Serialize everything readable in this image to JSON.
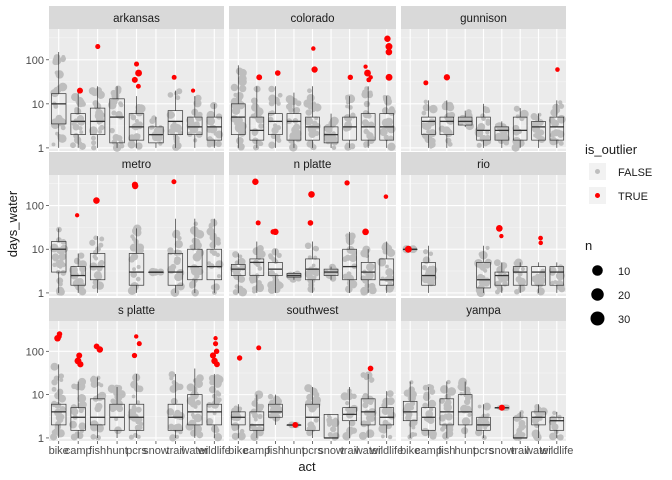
{
  "chart_data": {
    "type": "boxplot",
    "facet_var": "river",
    "x_var": "act",
    "xlabel": "act",
    "ylabel": "days_water",
    "y_scale": "log10",
    "ylim": [
      0.85,
      500
    ],
    "y_ticks": [
      1,
      10,
      100
    ],
    "y_tick_labels": [
      "1",
      "10",
      "100"
    ],
    "categories": [
      "bike",
      "camp",
      "fish",
      "hunt",
      "pcrs",
      "snow",
      "trail",
      "water",
      "wildlife"
    ],
    "category_tick_labels": [
      "bike",
      "camp",
      "fish",
      "hunt",
      "pcrs",
      "snow",
      "trail",
      "water",
      "wildlife"
    ],
    "grid": true,
    "legends": {
      "color": {
        "title": "is_outlier",
        "entries": [
          {
            "label": "FALSE",
            "color": "#bebebe"
          },
          {
            "label": "TRUE",
            "color": "#ff0000"
          }
        ],
        "position": "right"
      },
      "size": {
        "title": "n",
        "entries": [
          {
            "label": "10",
            "value": 10
          },
          {
            "label": "20",
            "value": 20
          },
          {
            "label": "30",
            "value": 30
          }
        ],
        "position": "right"
      }
    },
    "panels": [
      {
        "name": "arkansas",
        "boxes": [
          {
            "cat": "bike",
            "min": 1,
            "q1": 3.5,
            "med": 10,
            "q3": 17,
            "max": 150
          },
          {
            "cat": "camp",
            "min": 1,
            "q1": 2,
            "med": 4,
            "q3": 6,
            "max": 20
          },
          {
            "cat": "fish",
            "min": 1,
            "q1": 2,
            "med": 4,
            "q3": 8,
            "max": 25
          },
          {
            "cat": "hunt",
            "min": 1,
            "q1": 1.3,
            "med": 5,
            "q3": 13,
            "max": 25
          },
          {
            "cat": "pcrs",
            "min": 1,
            "q1": 1.5,
            "med": 3,
            "q3": 6,
            "max": 15
          },
          {
            "cat": "snow",
            "min": 1,
            "q1": 1.3,
            "med": 2,
            "q3": 3,
            "max": 5
          },
          {
            "cat": "trail",
            "min": 1,
            "q1": 2,
            "med": 4,
            "q3": 7,
            "max": 20
          },
          {
            "cat": "water",
            "min": 1,
            "q1": 2,
            "med": 3,
            "q3": 5,
            "max": 15
          },
          {
            "cat": "wildlife",
            "min": 1,
            "q1": 1.5,
            "med": 3,
            "q3": 5,
            "max": 10
          }
        ],
        "outliers": [
          {
            "cat": "camp",
            "v": 20
          },
          {
            "cat": "fish",
            "v": 200
          },
          {
            "cat": "pcrs",
            "v": 80
          },
          {
            "cat": "pcrs",
            "v": 50
          },
          {
            "cat": "pcrs",
            "v": 35
          },
          {
            "cat": "pcrs",
            "v": 25
          },
          {
            "cat": "trail",
            "v": 40
          },
          {
            "cat": "water",
            "v": 20
          }
        ]
      },
      {
        "name": "colorado",
        "boxes": [
          {
            "cat": "bike",
            "min": 1,
            "q1": 2,
            "med": 5,
            "q3": 10,
            "max": 75
          },
          {
            "cat": "camp",
            "min": 1,
            "q1": 1.5,
            "med": 2.5,
            "q3": 5,
            "max": 25
          },
          {
            "cat": "fish",
            "min": 1,
            "q1": 2,
            "med": 4,
            "q3": 6,
            "max": 25
          },
          {
            "cat": "hunt",
            "min": 1,
            "q1": 1.5,
            "med": 4,
            "q3": 6,
            "max": 18
          },
          {
            "cat": "pcrs",
            "min": 1,
            "q1": 1.5,
            "med": 3,
            "q3": 5,
            "max": 25
          },
          {
            "cat": "snow",
            "min": 1,
            "q1": 1.3,
            "med": 2,
            "q3": 3,
            "max": 6
          },
          {
            "cat": "trail",
            "min": 1,
            "q1": 1.5,
            "med": 3,
            "q3": 5,
            "max": 15
          },
          {
            "cat": "water",
            "min": 1,
            "q1": 1.5,
            "med": 3,
            "q3": 6,
            "max": 25
          },
          {
            "cat": "wildlife",
            "min": 1,
            "q1": 1.5,
            "med": 3,
            "q3": 6,
            "max": 15
          }
        ],
        "outliers": [
          {
            "cat": "camp",
            "v": 40
          },
          {
            "cat": "fish",
            "v": 50
          },
          {
            "cat": "pcrs",
            "v": 180
          },
          {
            "cat": "pcrs",
            "v": 60
          },
          {
            "cat": "trail",
            "v": 40
          },
          {
            "cat": "water",
            "v": 70
          },
          {
            "cat": "water",
            "v": 50
          },
          {
            "cat": "water",
            "v": 40
          },
          {
            "cat": "water",
            "v": 35
          },
          {
            "cat": "wildlife",
            "v": 300
          },
          {
            "cat": "wildlife",
            "v": 200
          },
          {
            "cat": "wildlife",
            "v": 150
          },
          {
            "cat": "wildlife",
            "v": 40
          }
        ]
      },
      {
        "name": "gunnison",
        "boxes": [
          {
            "cat": "camp",
            "min": 1,
            "q1": 2,
            "med": 4,
            "q3": 5,
            "max": 12
          },
          {
            "cat": "fish",
            "min": 1,
            "q1": 2,
            "med": 4,
            "q3": 5,
            "max": 12
          },
          {
            "cat": "hunt",
            "min": 3,
            "q1": 3.3,
            "med": 4,
            "q3": 5,
            "max": 7
          },
          {
            "cat": "pcrs",
            "min": 1,
            "q1": 1.5,
            "med": 2.5,
            "q3": 5,
            "max": 10
          },
          {
            "cat": "snow",
            "min": 1,
            "q1": 1.5,
            "med": 2.5,
            "q3": 3,
            "max": 4
          },
          {
            "cat": "trail",
            "min": 1,
            "q1": 1.5,
            "med": 2.5,
            "q3": 5,
            "max": 8
          },
          {
            "cat": "water",
            "min": 1,
            "q1": 1.5,
            "med": 3,
            "q3": 4,
            "max": 6
          },
          {
            "cat": "wildlife",
            "min": 1,
            "q1": 1.5,
            "med": 3,
            "q3": 5,
            "max": 12
          }
        ],
        "outliers": [
          {
            "cat": "camp",
            "v": 30
          },
          {
            "cat": "fish",
            "v": 40
          },
          {
            "cat": "wildlife",
            "v": 60
          }
        ]
      },
      {
        "name": "metro",
        "boxes": [
          {
            "cat": "bike",
            "min": 1,
            "q1": 3,
            "med": 10,
            "q3": 15,
            "max": 30
          },
          {
            "cat": "camp",
            "min": 1,
            "q1": 1.5,
            "med": 2.5,
            "q3": 4,
            "max": 8
          },
          {
            "cat": "fish",
            "min": 1,
            "q1": 2,
            "med": 4,
            "q3": 8,
            "max": 20
          },
          {
            "cat": "pcrs",
            "min": 1,
            "q1": 1.5,
            "med": 3,
            "q3": 8,
            "max": 30
          },
          {
            "cat": "snow",
            "min": 3,
            "q1": 3,
            "med": 3,
            "q3": 3,
            "max": 3
          },
          {
            "cat": "trail",
            "min": 1,
            "q1": 1.5,
            "med": 3,
            "q3": 8,
            "max": 50
          },
          {
            "cat": "water",
            "min": 1,
            "q1": 2,
            "med": 4,
            "q3": 10,
            "max": 50
          },
          {
            "cat": "wildlife",
            "min": 1,
            "q1": 2,
            "med": 4,
            "q3": 10,
            "max": 50
          }
        ],
        "outliers": [
          {
            "cat": "camp",
            "v": 60
          },
          {
            "cat": "fish",
            "v": 130
          },
          {
            "cat": "pcrs",
            "v": 300
          },
          {
            "cat": "pcrs",
            "v": 280
          },
          {
            "cat": "trail",
            "v": 350
          }
        ]
      },
      {
        "name": "n platte",
        "boxes": [
          {
            "cat": "bike",
            "min": 1,
            "q1": 2.5,
            "med": 3.5,
            "q3": 4.5,
            "max": 8
          },
          {
            "cat": "camp",
            "min": 1,
            "q1": 2.5,
            "med": 5,
            "q3": 6,
            "max": 15
          },
          {
            "cat": "fish",
            "min": 1,
            "q1": 2.5,
            "med": 3.5,
            "q3": 5,
            "max": 10
          },
          {
            "cat": "hunt",
            "min": 2,
            "q1": 2.3,
            "med": 2.5,
            "q3": 2.8,
            "max": 3
          },
          {
            "cat": "pcrs",
            "min": 1,
            "q1": 2,
            "med": 3.5,
            "q3": 6,
            "max": 15
          },
          {
            "cat": "snow",
            "min": 2,
            "q1": 2.5,
            "med": 3,
            "q3": 3.5,
            "max": 4
          },
          {
            "cat": "trail",
            "min": 1,
            "q1": 2,
            "med": 4,
            "q3": 10,
            "max": 25
          },
          {
            "cat": "water",
            "min": 1,
            "q1": 2,
            "med": 3,
            "q3": 5,
            "max": 10
          },
          {
            "cat": "wildlife",
            "min": 1,
            "q1": 1.5,
            "med": 2,
            "q3": 6,
            "max": 15
          }
        ],
        "outliers": [
          {
            "cat": "camp",
            "v": 40
          },
          {
            "cat": "camp",
            "v": 350
          },
          {
            "cat": "fish",
            "v": 25
          },
          {
            "cat": "fish",
            "v": 25
          },
          {
            "cat": "pcrs",
            "v": 180
          },
          {
            "cat": "pcrs",
            "v": 40
          },
          {
            "cat": "trail",
            "v": 330
          },
          {
            "cat": "water",
            "v": 25
          },
          {
            "cat": "wildlife",
            "v": 160
          }
        ]
      },
      {
        "name": "rio",
        "boxes": [
          {
            "cat": "bike",
            "min": 10,
            "q1": 10,
            "med": 10,
            "q3": 10,
            "max": 10
          },
          {
            "cat": "camp",
            "min": 1,
            "q1": 1.5,
            "med": 2.5,
            "q3": 5,
            "max": 12
          },
          {
            "cat": "pcrs",
            "min": 1,
            "q1": 1.3,
            "med": 2,
            "q3": 5,
            "max": 12
          },
          {
            "cat": "snow",
            "min": 1,
            "q1": 1.5,
            "med": 2.5,
            "q3": 3,
            "max": 5
          },
          {
            "cat": "trail",
            "min": 1,
            "q1": 1.5,
            "med": 3,
            "q3": 4,
            "max": 5
          },
          {
            "cat": "water",
            "min": 1,
            "q1": 1.5,
            "med": 3,
            "q3": 4,
            "max": 5
          },
          {
            "cat": "wildlife",
            "min": 1,
            "q1": 1.5,
            "med": 3,
            "q3": 4,
            "max": 5
          }
        ],
        "outliers": [
          {
            "cat": "bike",
            "v": 10
          },
          {
            "cat": "snow",
            "v": 30
          },
          {
            "cat": "snow",
            "v": 20
          },
          {
            "cat": "water",
            "v": 18
          },
          {
            "cat": "water",
            "v": 14
          }
        ]
      },
      {
        "name": "s platte",
        "boxes": [
          {
            "cat": "bike",
            "min": 1,
            "q1": 2,
            "med": 4,
            "q3": 6,
            "max": 50
          },
          {
            "cat": "camp",
            "min": 1,
            "q1": 1.5,
            "med": 3,
            "q3": 5,
            "max": 20
          },
          {
            "cat": "fish",
            "min": 1,
            "q1": 2,
            "med": 3,
            "q3": 8,
            "max": 25
          },
          {
            "cat": "hunt",
            "min": 1,
            "q1": 1.5,
            "med": 3,
            "q3": 6,
            "max": 15
          },
          {
            "cat": "pcrs",
            "min": 1,
            "q1": 1.5,
            "med": 3,
            "q3": 6,
            "max": 30
          },
          {
            "cat": "trail",
            "min": 1,
            "q1": 1.5,
            "med": 3,
            "q3": 6,
            "max": 30
          },
          {
            "cat": "water",
            "min": 1,
            "q1": 2,
            "med": 4,
            "q3": 10,
            "max": 40
          },
          {
            "cat": "wildlife",
            "min": 1,
            "q1": 2,
            "med": 4,
            "q3": 6,
            "max": 30
          }
        ],
        "outliers": [
          {
            "cat": "bike",
            "v": 250
          },
          {
            "cat": "bike",
            "v": 220
          },
          {
            "cat": "bike",
            "v": 200
          },
          {
            "cat": "camp",
            "v": 80
          },
          {
            "cat": "camp",
            "v": 60
          },
          {
            "cat": "camp",
            "v": 50
          },
          {
            "cat": "fish",
            "v": 130
          },
          {
            "cat": "fish",
            "v": 110
          },
          {
            "cat": "pcrs",
            "v": 220
          },
          {
            "cat": "pcrs",
            "v": 150
          },
          {
            "cat": "pcrs",
            "v": 80
          },
          {
            "cat": "wildlife",
            "v": 200
          },
          {
            "cat": "wildlife",
            "v": 150
          },
          {
            "cat": "wildlife",
            "v": 100
          },
          {
            "cat": "wildlife",
            "v": 80
          },
          {
            "cat": "wildlife",
            "v": 60
          },
          {
            "cat": "wildlife",
            "v": 50
          }
        ]
      },
      {
        "name": "southwest",
        "boxes": [
          {
            "cat": "bike",
            "min": 1,
            "q1": 2,
            "med": 3,
            "q3": 4,
            "max": 6
          },
          {
            "cat": "camp",
            "min": 1,
            "q1": 1.5,
            "med": 2,
            "q3": 4,
            "max": 10
          },
          {
            "cat": "fish",
            "min": 2,
            "q1": 3,
            "med": 4,
            "q3": 6,
            "max": 10
          },
          {
            "cat": "hunt",
            "min": 2,
            "q1": 2,
            "med": 2,
            "q3": 2,
            "max": 2
          },
          {
            "cat": "pcrs",
            "min": 1,
            "q1": 1.5,
            "med": 3,
            "q3": 6,
            "max": 15
          },
          {
            "cat": "snow",
            "min": 1,
            "q1": 1,
            "med": 1,
            "q3": 3.5,
            "max": 3.5
          },
          {
            "cat": "trail",
            "min": 1,
            "q1": 2.5,
            "med": 3.5,
            "q3": 5,
            "max": 15
          },
          {
            "cat": "water",
            "min": 1,
            "q1": 2,
            "med": 4,
            "q3": 8,
            "max": 30
          },
          {
            "cat": "wildlife",
            "min": 1,
            "q1": 2,
            "med": 3,
            "q3": 5,
            "max": 12
          }
        ],
        "outliers": [
          {
            "cat": "bike",
            "v": 70
          },
          {
            "cat": "camp",
            "v": 120
          },
          {
            "cat": "hunt",
            "v": 2
          },
          {
            "cat": "water",
            "v": 40
          }
        ]
      },
      {
        "name": "yampa",
        "boxes": [
          {
            "cat": "bike",
            "min": 1,
            "q1": 2.5,
            "med": 4,
            "q3": 7,
            "max": 20
          },
          {
            "cat": "camp",
            "min": 1,
            "q1": 1.5,
            "med": 3,
            "q3": 5,
            "max": 15
          },
          {
            "cat": "fish",
            "min": 1,
            "q1": 2,
            "med": 4,
            "q3": 8,
            "max": 20
          },
          {
            "cat": "hunt",
            "min": 1,
            "q1": 2,
            "med": 4,
            "q3": 10,
            "max": 20
          },
          {
            "cat": "pcrs",
            "min": 1,
            "q1": 1.5,
            "med": 2,
            "q3": 3,
            "max": 6
          },
          {
            "cat": "snow",
            "min": 5,
            "q1": 5,
            "med": 5,
            "q3": 5,
            "max": 5
          },
          {
            "cat": "trail",
            "min": 1,
            "q1": 1,
            "med": 1,
            "q3": 3,
            "max": 4
          },
          {
            "cat": "water",
            "min": 1,
            "q1": 2,
            "med": 3,
            "q3": 4,
            "max": 6
          },
          {
            "cat": "wildlife",
            "min": 1,
            "q1": 1.5,
            "med": 2.5,
            "q3": 3,
            "max": 4
          }
        ],
        "outliers": [
          {
            "cat": "snow",
            "v": 5
          }
        ]
      }
    ]
  },
  "colors": {
    "panel_bg": "#ebebeb",
    "strip_bg": "#d9d9d9",
    "grid_major": "#ffffff",
    "point_normal": "#bebebe",
    "point_outlier": "#ff0000",
    "text": "#1a1a1a",
    "tick_text": "#4d4d4d"
  }
}
